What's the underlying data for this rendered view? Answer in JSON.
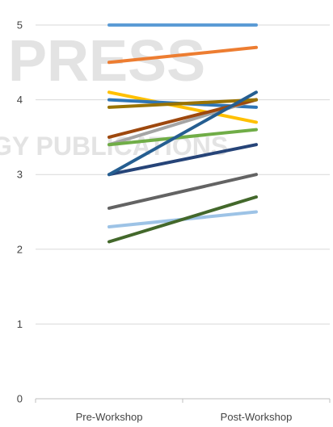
{
  "chart_data": {
    "type": "line",
    "categories": [
      "Pre-Workshop",
      "Post-Workshop"
    ],
    "ylim": [
      0,
      5
    ],
    "yticks": [
      0,
      1,
      2,
      3,
      4,
      5
    ],
    "grid": "horizontal",
    "legend": "none",
    "series": [
      {
        "color": "#5B9BD5",
        "values": [
          5.0,
          5.0
        ]
      },
      {
        "color": "#ED7D31",
        "values": [
          4.5,
          4.7
        ]
      },
      {
        "color": "#FFC000",
        "values": [
          4.1,
          3.7
        ]
      },
      {
        "color": "#2E75B6",
        "values": [
          4.0,
          3.9
        ]
      },
      {
        "color": "#A5A5A5",
        "values": [
          3.4,
          4.0
        ]
      },
      {
        "color": "#9E480E",
        "values": [
          3.5,
          4.0
        ]
      },
      {
        "color": "#997300",
        "values": [
          3.9,
          4.0
        ]
      },
      {
        "color": "#70AD47",
        "values": [
          3.4,
          3.6
        ]
      },
      {
        "color": "#264478",
        "values": [
          3.0,
          3.4
        ]
      },
      {
        "color": "#255E91",
        "values": [
          3.0,
          4.1
        ]
      },
      {
        "color": "#636363",
        "values": [
          2.55,
          3.0
        ]
      },
      {
        "color": "#9DC3E6",
        "values": [
          2.3,
          2.5
        ]
      },
      {
        "color": "#43682B",
        "values": [
          2.1,
          2.7
        ]
      }
    ]
  }
}
